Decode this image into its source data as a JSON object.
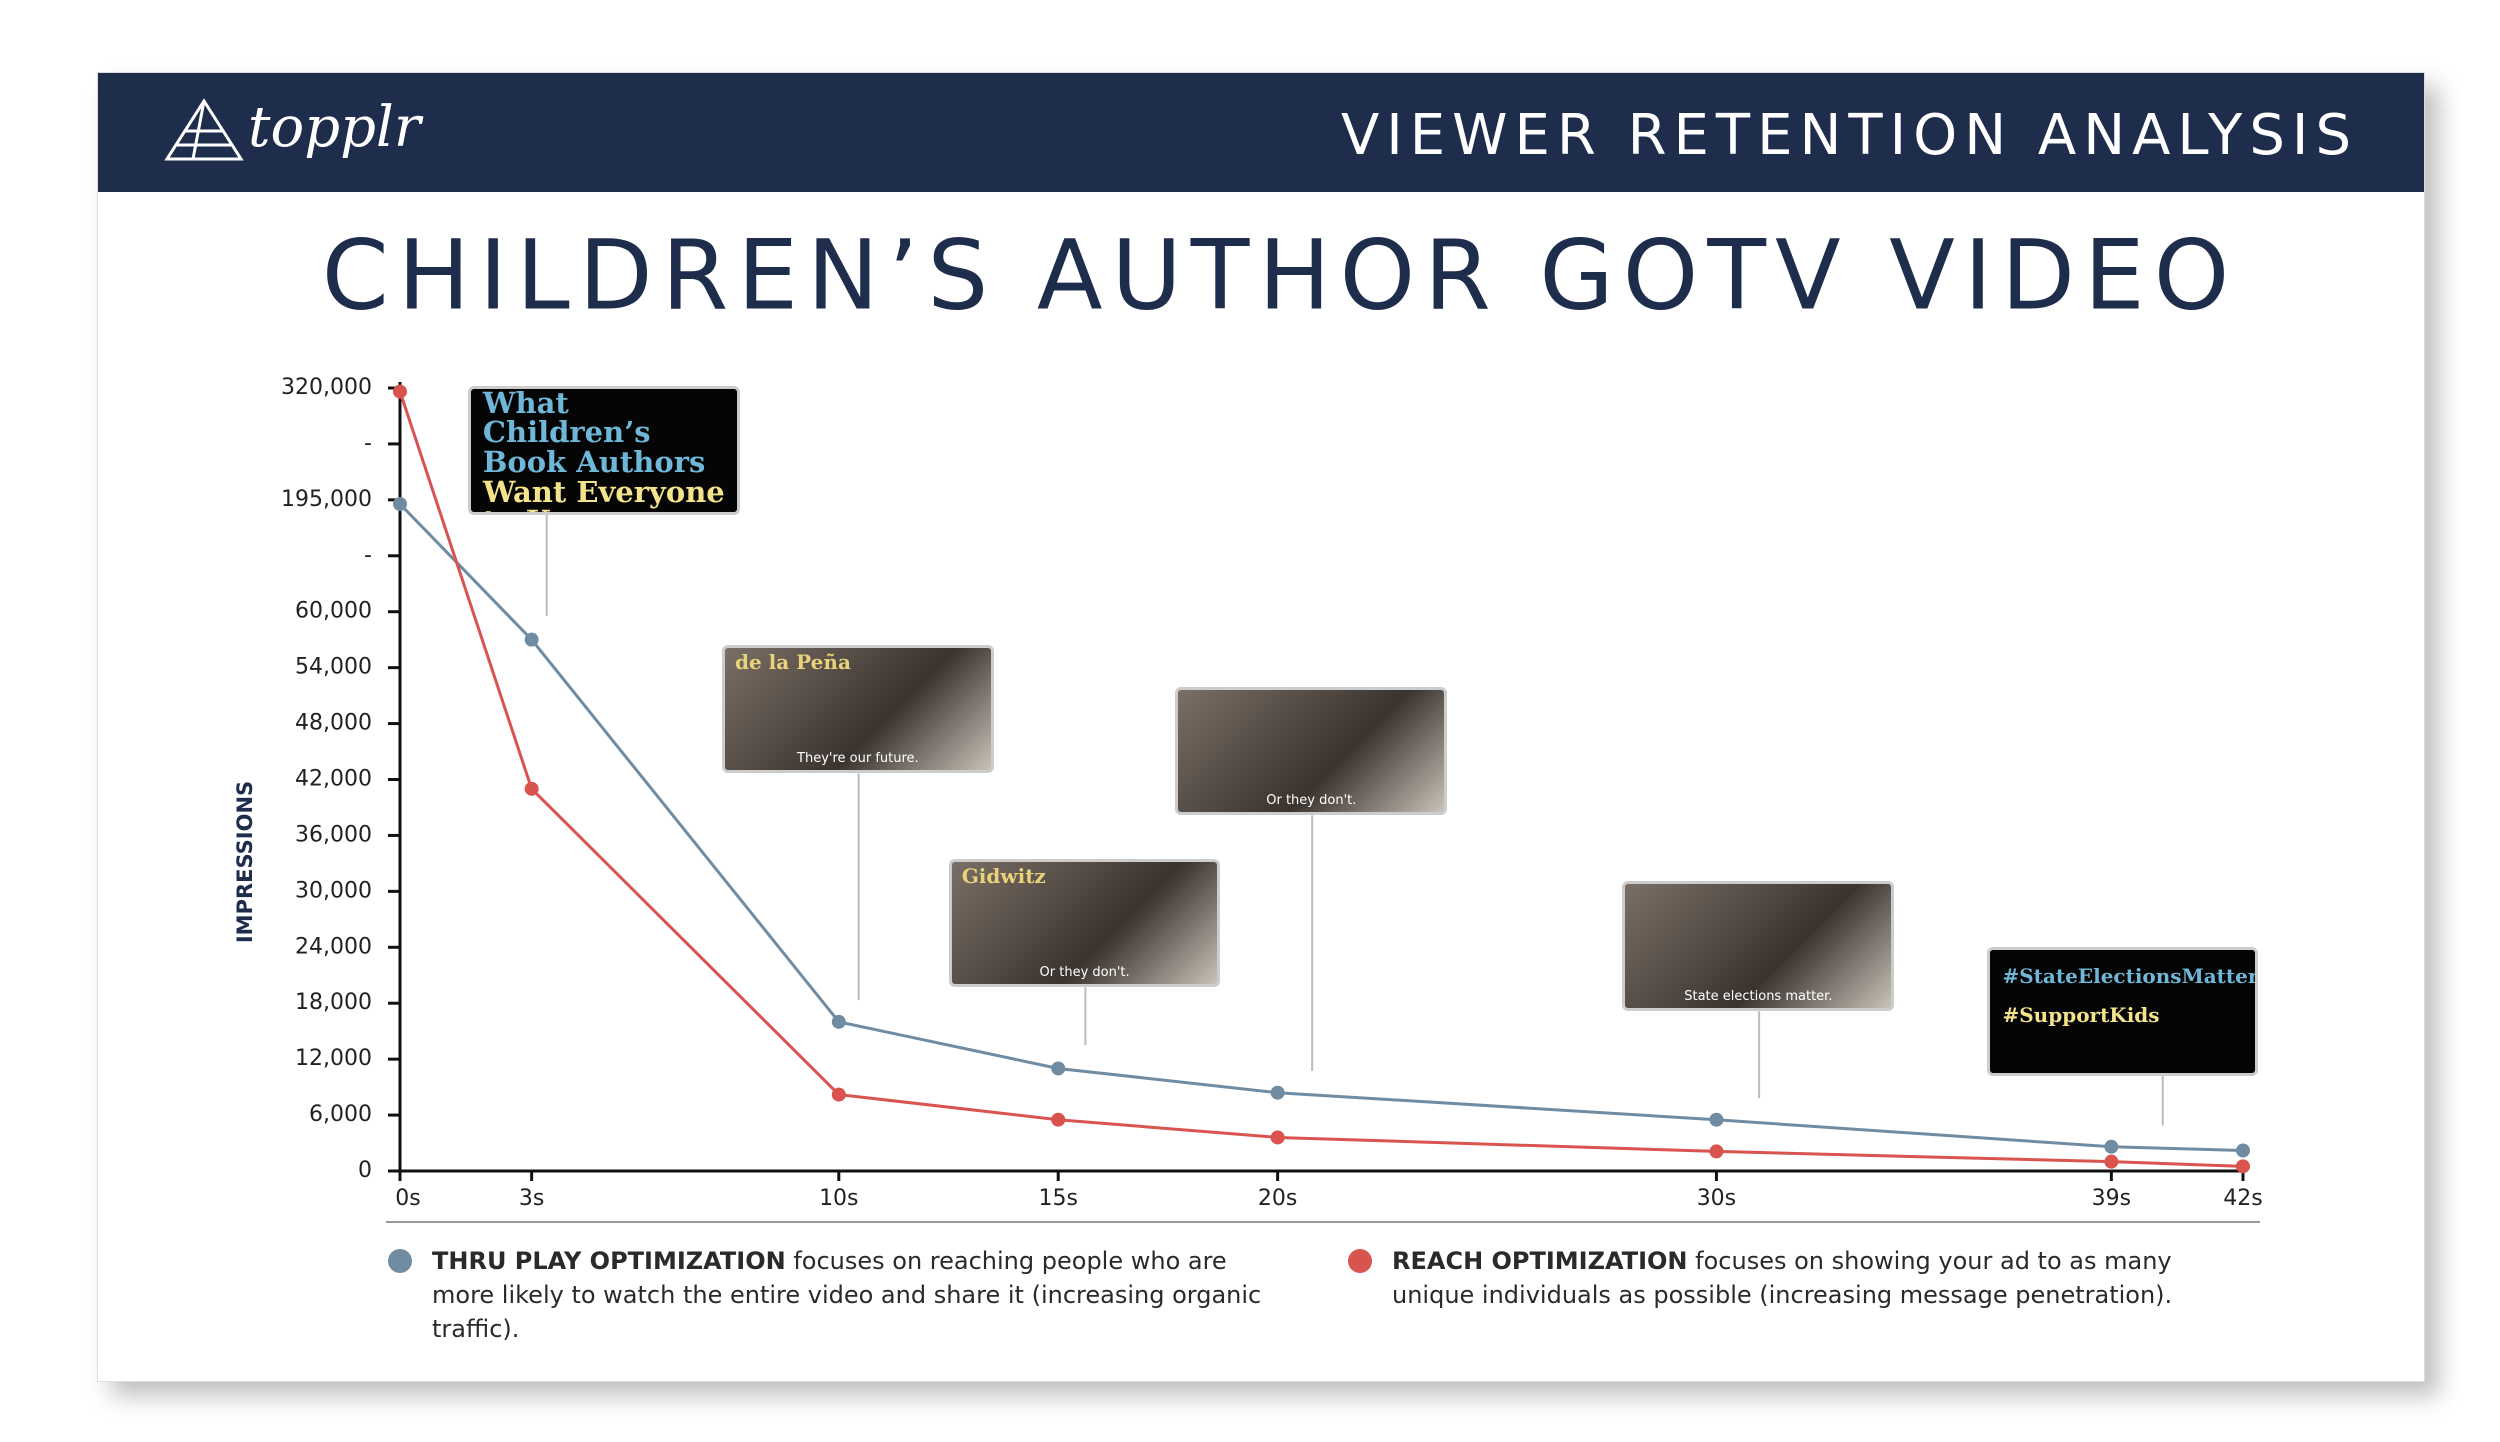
{
  "header": {
    "brand": "topplr",
    "title": "VIEWER RETENTION ANALYSIS"
  },
  "chart_data": {
    "type": "line",
    "title": "CHILDREN’S AUTHOR GOTV VIDEO",
    "y_label": "IMPRESSIONS",
    "x": [
      0,
      3,
      10,
      15,
      20,
      30,
      39,
      42
    ],
    "xlim": [
      0,
      42
    ],
    "xticks": [
      {
        "value": 0,
        "label": "0s"
      },
      {
        "value": 3,
        "label": "3s"
      },
      {
        "value": 10,
        "label": "10s"
      },
      {
        "value": 15,
        "label": "15s"
      },
      {
        "value": 20,
        "label": "20s"
      },
      {
        "value": 30,
        "label": "30s"
      },
      {
        "value": 39,
        "label": "39s"
      },
      {
        "value": 42,
        "label": "42s"
      }
    ],
    "ylim": [
      0,
      320000
    ],
    "yticks": [
      0,
      {
        "value": 6000,
        "label": "6,000"
      },
      {
        "value": 12000,
        "label": "12,000"
      },
      {
        "value": 18000,
        "label": "18,000"
      },
      {
        "value": 24000,
        "label": "24,000"
      },
      {
        "value": 30000,
        "label": "30,000"
      },
      {
        "value": 36000,
        "label": "36,000"
      },
      {
        "value": 42000,
        "label": "42,000"
      },
      {
        "value": 48000,
        "label": "48,000"
      },
      {
        "value": 54000,
        "label": "54,000"
      },
      {
        "value": 60000,
        "label": "60,000"
      },
      {
        "value": 127500,
        "label": "-"
      },
      {
        "value": 195000,
        "label": "195,000"
      },
      {
        "value": 257500,
        "label": "-"
      },
      {
        "value": 320000,
        "label": "320,000"
      }
    ],
    "series": [
      {
        "name": "THRU PLAY OPTIMIZATION",
        "description": "focuses on reaching people who are more likely to watch the entire video and share it (increasing organic traffic).",
        "color": "#6f8ca3",
        "values": [
          190000,
          57000,
          16000,
          11000,
          8400,
          5500,
          2600,
          2200
        ]
      },
      {
        "name": "REACH OPTIMIZATION",
        "description": "focuses on showing your ad to as many unique individuals as possible (increasing message penetration).",
        "color": "#d9534f",
        "values": [
          316000,
          41000,
          8200,
          5500,
          3600,
          2100,
          1000,
          500
        ]
      }
    ],
    "thumbnails": [
      {
        "lines": [
          "What Children’s",
          "Book Authors",
          "Want Everyone",
          "to Know"
        ]
      },
      {
        "name": "de la Peña",
        "caption": "They're our future."
      },
      {
        "name": "Gidwitz",
        "caption": "Or they don't."
      },
      {
        "caption": "Or they don't."
      },
      {
        "caption": "State elections matter."
      },
      {
        "lines": [
          "#StateElectionsMatter",
          "#SupportKids"
        ]
      }
    ]
  }
}
